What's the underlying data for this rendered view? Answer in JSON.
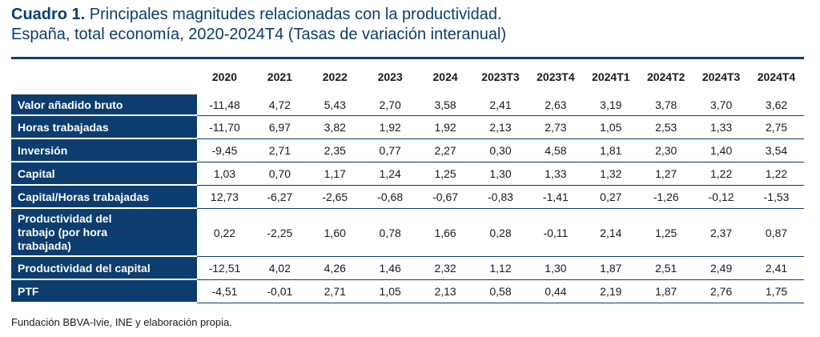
{
  "title": {
    "bold": "Cuadro 1.",
    "line1": " Principales magnitudes relacionadas con la productividad.",
    "line2": "España, total economía, 2020-2024T4  (Tasas de variación interanual)"
  },
  "columns": [
    "2020",
    "2021",
    "2022",
    "2023",
    "2024",
    "2023T3",
    "2023T4",
    "2024T1",
    "2024T2",
    "2024T3",
    "2024T4"
  ],
  "rows": [
    {
      "label": "Valor añadido bruto",
      "values": [
        "-11,48",
        "4,72",
        "5,43",
        "2,70",
        "3,58",
        "2,41",
        "2,63",
        "3,19",
        "3,78",
        "3,70",
        "3,62"
      ]
    },
    {
      "label": "Horas trabajadas",
      "values": [
        "-11,70",
        "6,97",
        "3,82",
        "1,92",
        "1,92",
        "2,13",
        "2,73",
        "1,05",
        "2,53",
        "1,33",
        "2,75"
      ]
    },
    {
      "label": "Inversión",
      "values": [
        "-9,45",
        "2,71",
        "2,35",
        "0,77",
        "2,27",
        "0,30",
        "4,58",
        "1,81",
        "2,30",
        "1,40",
        "3,54"
      ]
    },
    {
      "label": "Capital",
      "values": [
        "1,03",
        "0,70",
        "1,17",
        "1,24",
        "1,25",
        "1,30",
        "1,33",
        "1,32",
        "1,27",
        "1,22",
        "1,22"
      ]
    },
    {
      "label": "Capital/Horas trabajadas",
      "values": [
        "12,73",
        "-6,27",
        "-2,65",
        "-0,68",
        "-0,67",
        "-0,83",
        "-1,41",
        "0,27",
        "-1,26",
        "-0,12",
        "-1,53"
      ]
    },
    {
      "label": "Productividad del trabajo  (por hora trabajada)",
      "values": [
        "0,22",
        "-2,25",
        "1,60",
        "0,78",
        "1,66",
        "0,28",
        "-0,11",
        "2,14",
        "1,25",
        "2,37",
        "0,87"
      ]
    },
    {
      "label": "Productividad del capital",
      "values": [
        "-12,51",
        "4,02",
        "4,26",
        "1,46",
        "2,32",
        "1,12",
        "1,30",
        "1,87",
        "2,51",
        "2,49",
        "2,41"
      ]
    },
    {
      "label": "PTF",
      "values": [
        "-4,51",
        "-0,01",
        "2,71",
        "1,05",
        "2,13",
        "0,58",
        "0,44",
        "2,19",
        "1,87",
        "2,76",
        "1,75"
      ]
    }
  ],
  "source": "Fundación BBVA-Ivie, INE y elaboración propia."
}
